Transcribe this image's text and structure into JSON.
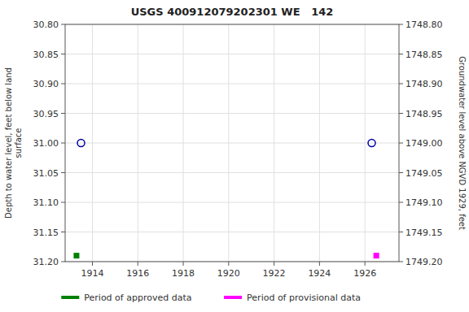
{
  "chart_data": {
    "type": "scatter",
    "title": "USGS 400912079202301 WE   142",
    "ylabel": "Depth to water level, feet below land\nsurface",
    "y2label": "Groundwater level above NGVD 1929, feet",
    "xlim": [
      1912.8,
      1927.5
    ],
    "xticks": [
      1914,
      1916,
      1918,
      1920,
      1922,
      1924,
      1926
    ],
    "ylim": [
      31.2,
      30.8
    ],
    "yticks": [
      {
        "value": 30.8,
        "label": "30.80"
      },
      {
        "value": 30.85,
        "label": "30.85"
      },
      {
        "value": 30.9,
        "label": "30.90"
      },
      {
        "value": 30.95,
        "label": "30.95"
      },
      {
        "value": 31.0,
        "label": "31.00"
      },
      {
        "value": 31.05,
        "label": "31.05"
      },
      {
        "value": 31.1,
        "label": "31.10"
      },
      {
        "value": 31.15,
        "label": "31.15"
      },
      {
        "value": 31.2,
        "label": "31.20"
      }
    ],
    "y2lim": [
      1749.2,
      1748.8
    ],
    "y2ticks": [
      {
        "value": 1748.8,
        "label": "1748.80"
      },
      {
        "value": 1748.85,
        "label": "1748.85"
      },
      {
        "value": 1748.9,
        "label": "1748.90"
      },
      {
        "value": 1748.95,
        "label": "1748.95"
      },
      {
        "value": 1749.0,
        "label": "1749.00"
      },
      {
        "value": 1749.05,
        "label": "1749.05"
      },
      {
        "value": 1749.1,
        "label": "1749.10"
      },
      {
        "value": 1749.15,
        "label": "1749.15"
      },
      {
        "value": 1749.2,
        "label": "1749.20"
      }
    ],
    "grid": true,
    "legend": "bottom",
    "series": [
      {
        "x": [
          1913.5,
          1926.3
        ],
        "values": [
          31.0,
          31.0
        ],
        "color": "#0000aa",
        "marker": "circle"
      },
      {
        "name": "Period of approved data",
        "x": [
          1913.3
        ],
        "values": [
          31.19
        ],
        "color": "#008000",
        "marker": "square"
      },
      {
        "name": "Period of provisional data",
        "x": [
          1926.5
        ],
        "values": [
          31.19
        ],
        "color": "#ff00ff",
        "marker": "square"
      }
    ]
  }
}
